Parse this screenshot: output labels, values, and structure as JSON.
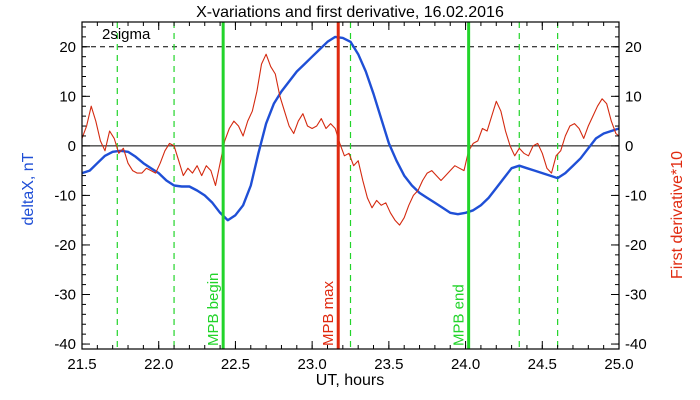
{
  "chart_data": {
    "type": "line",
    "title": "X-variations and first derivative, 16.02.2016",
    "xlabel": "UT, hours",
    "ylabel_left": "deltaX, nT",
    "ylabel_right": "First derivative*10",
    "xlim": [
      21.5,
      25.0
    ],
    "ylim": [
      -41,
      25
    ],
    "x_ticks": [
      "21.5",
      "22.0",
      "22.5",
      "23.0",
      "23.5",
      "24.0",
      "24.5",
      "25.0"
    ],
    "y_ticks_left": [
      "-40",
      "-30",
      "-20",
      "-10",
      "0",
      "10",
      "20"
    ],
    "y_ticks_right": [
      "-40",
      "-30",
      "-20",
      "-10",
      "0",
      "10",
      "20"
    ],
    "sigma_label": "2sigma",
    "sigma_level": 20,
    "zero_level": 0,
    "colors": {
      "deltaX": "#1f4fd6",
      "derivative": "#d42a10",
      "mpb": "#22d42a",
      "max": "#e02a10",
      "text_left": "#1f4fd6",
      "text_right": "#e02a10"
    },
    "vertical_markers": [
      {
        "x": 22.42,
        "label": "MPB begin",
        "color": "#22d42a"
      },
      {
        "x": 23.17,
        "label": "MPB max",
        "color": "#e02a10"
      },
      {
        "x": 24.02,
        "label": "MPB end",
        "color": "#22d42a"
      }
    ],
    "dashed_markers": [
      21.73,
      22.1,
      22.42,
      23.25,
      24.02,
      24.35,
      24.6
    ],
    "series": [
      {
        "name": "deltaX",
        "x": [
          21.5,
          21.55,
          21.6,
          21.65,
          21.7,
          21.75,
          21.8,
          21.85,
          21.9,
          21.95,
          22.0,
          22.05,
          22.1,
          22.15,
          22.2,
          22.25,
          22.3,
          22.35,
          22.4,
          22.45,
          22.5,
          22.55,
          22.6,
          22.65,
          22.7,
          22.75,
          22.8,
          22.85,
          22.9,
          22.95,
          23.0,
          23.05,
          23.1,
          23.15,
          23.2,
          23.25,
          23.3,
          23.35,
          23.4,
          23.45,
          23.5,
          23.55,
          23.6,
          23.65,
          23.7,
          23.75,
          23.8,
          23.85,
          23.9,
          23.95,
          24.0,
          24.05,
          24.1,
          24.15,
          24.2,
          24.25,
          24.3,
          24.35,
          24.4,
          24.45,
          24.5,
          24.55,
          24.6,
          24.65,
          24.7,
          24.75,
          24.8,
          24.85,
          24.9,
          24.95,
          25.0
        ],
        "values": [
          -5.5,
          -5.0,
          -3.5,
          -2.0,
          -1.2,
          -1.0,
          -1.2,
          -2.2,
          -3.5,
          -4.5,
          -5.5,
          -7.0,
          -8.0,
          -8.2,
          -8.2,
          -9.0,
          -10.0,
          -11.5,
          -13.5,
          -15.0,
          -14.0,
          -12.0,
          -8.0,
          -1.5,
          4.5,
          8.5,
          11.0,
          13.0,
          15.0,
          16.5,
          18.0,
          19.5,
          21.0,
          22.0,
          21.8,
          21.0,
          18.5,
          15.0,
          10.5,
          5.5,
          0.5,
          -3.0,
          -6.0,
          -8.0,
          -9.5,
          -10.5,
          -11.5,
          -12.5,
          -13.5,
          -13.8,
          -13.5,
          -13.0,
          -12.0,
          -10.5,
          -8.5,
          -6.5,
          -4.5,
          -4.0,
          -4.5,
          -5.0,
          -5.5,
          -6.0,
          -6.5,
          -5.5,
          -4.0,
          -2.5,
          -0.5,
          1.5,
          2.5,
          3.0,
          3.5
        ]
      },
      {
        "name": "derivative",
        "x": [
          21.5,
          21.53,
          21.56,
          21.59,
          21.62,
          21.65,
          21.68,
          21.71,
          21.74,
          21.77,
          21.8,
          21.83,
          21.86,
          21.89,
          21.92,
          21.95,
          21.98,
          22.01,
          22.04,
          22.07,
          22.1,
          22.13,
          22.16,
          22.19,
          22.22,
          22.25,
          22.28,
          22.31,
          22.34,
          22.37,
          22.4,
          22.43,
          22.46,
          22.49,
          22.52,
          22.55,
          22.58,
          22.61,
          22.64,
          22.67,
          22.7,
          22.73,
          22.76,
          22.79,
          22.82,
          22.85,
          22.88,
          22.91,
          22.94,
          22.97,
          23.0,
          23.03,
          23.06,
          23.09,
          23.12,
          23.15,
          23.18,
          23.21,
          23.24,
          23.27,
          23.3,
          23.33,
          23.36,
          23.39,
          23.42,
          23.45,
          23.48,
          23.51,
          23.54,
          23.57,
          23.6,
          23.63,
          23.66,
          23.69,
          23.72,
          23.75,
          23.78,
          23.81,
          23.84,
          23.87,
          23.9,
          23.93,
          23.96,
          23.99,
          24.02,
          24.05,
          24.08,
          24.11,
          24.14,
          24.17,
          24.2,
          24.23,
          24.26,
          24.29,
          24.32,
          24.35,
          24.38,
          24.41,
          24.44,
          24.47,
          24.5,
          24.53,
          24.56,
          24.59,
          24.62,
          24.65,
          24.68,
          24.71,
          24.74,
          24.77,
          24.8,
          24.83,
          24.86,
          24.89,
          24.92,
          24.95,
          24.98,
          25.0
        ],
        "values": [
          1.5,
          4.0,
          8.0,
          5.0,
          1.0,
          -1.0,
          3.0,
          1.5,
          -1.5,
          -0.5,
          -3.5,
          -5.0,
          -5.5,
          -5.5,
          -4.5,
          -5.0,
          -5.5,
          -3.5,
          -1.0,
          0.5,
          0.0,
          -3.0,
          -6.0,
          -4.5,
          -5.5,
          -4.0,
          -6.0,
          -4.0,
          -5.0,
          -8.0,
          -3.5,
          1.0,
          3.5,
          5.0,
          4.0,
          2.0,
          5.0,
          7.0,
          11.0,
          16.5,
          18.5,
          16.0,
          14.5,
          10.0,
          7.0,
          4.0,
          2.5,
          5.0,
          6.5,
          4.0,
          3.5,
          4.0,
          5.5,
          3.5,
          4.5,
          3.5,
          0.5,
          -2.0,
          -1.5,
          -4.0,
          -3.0,
          -7.0,
          -10.5,
          -12.5,
          -11.0,
          -12.0,
          -11.5,
          -13.5,
          -15.0,
          -16.0,
          -14.5,
          -12.0,
          -10.0,
          -9.0,
          -7.0,
          -5.5,
          -5.0,
          -6.0,
          -7.0,
          -6.0,
          -5.0,
          -4.0,
          -4.5,
          -5.0,
          -1.0,
          0.5,
          1.0,
          3.5,
          3.0,
          6.0,
          9.0,
          7.0,
          3.0,
          0.0,
          -2.0,
          -0.5,
          -1.5,
          -2.0,
          0.0,
          0.5,
          -1.5,
          -4.5,
          -5.5,
          -2.0,
          -1.0,
          2.0,
          4.0,
          4.5,
          3.5,
          1.5,
          4.0,
          6.0,
          8.0,
          9.5,
          8.5,
          5.0,
          2.5,
          2.0
        ]
      }
    ]
  }
}
